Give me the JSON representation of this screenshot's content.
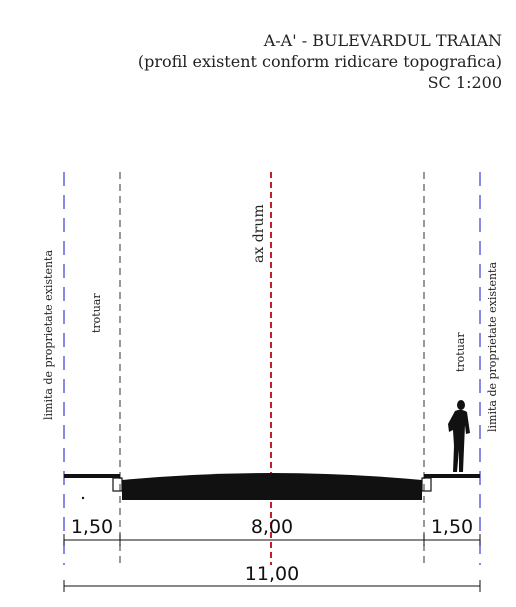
{
  "title": {
    "line1": "A-A' - BULEVARDUL TRAIAN",
    "line2": "(profil existent conform ridicare topografica)",
    "line3": "SC 1:200"
  },
  "labels": {
    "property_left": "limita de proprietate existenta",
    "property_right": "limita de proprietate existenta",
    "sidewalk_left": "trotuar",
    "sidewalk_right": "trotuar",
    "axis": "ax drum"
  },
  "dimensions": {
    "left_sidewalk": "1,50",
    "roadway": "8,00",
    "right_sidewalk": "1,50",
    "total": "11,00"
  },
  "colors": {
    "property_line": "#3b3bd6",
    "road_axis": "#c0202a",
    "sidewalk_line": "#555555",
    "road_fill": "#111111"
  }
}
